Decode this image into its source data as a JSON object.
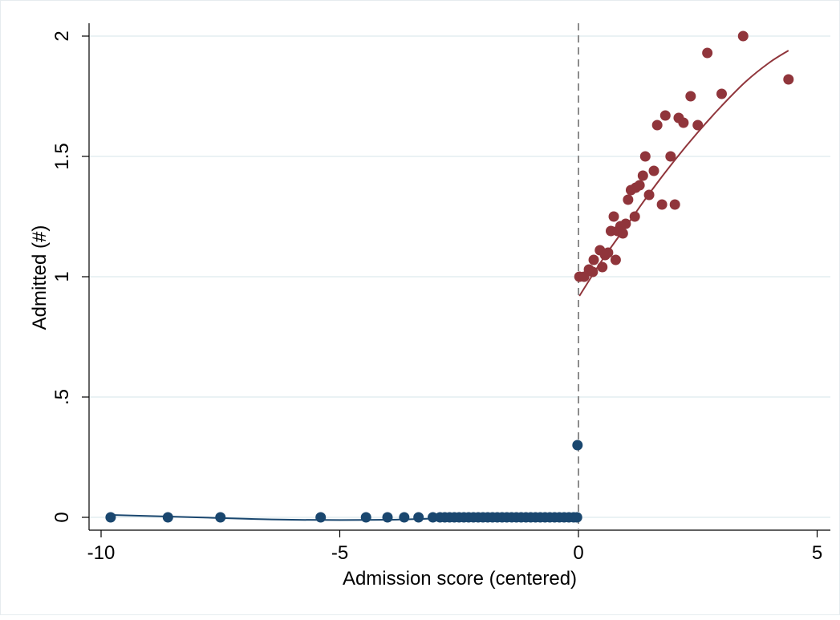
{
  "chart_data": {
    "type": "scatter",
    "xlabel": "Admission score (centered)",
    "ylabel": "Admitted (#)",
    "xlim": [
      -10.5,
      5.5
    ],
    "ylim": [
      -0.08,
      2.08
    ],
    "x_ticks": [
      -10,
      -5,
      0,
      5
    ],
    "x_tick_labels": [
      "-10",
      "-5",
      "0",
      "5"
    ],
    "y_ticks": [
      0,
      0.5,
      1,
      1.5,
      2
    ],
    "y_tick_labels": [
      "0",
      ".5",
      "1",
      "1.5",
      "2"
    ],
    "grid": true,
    "cutoff": 0,
    "colors": {
      "below": "#1a476f",
      "above": "#90353b",
      "cutoff_line": "#8c8c8c",
      "grid": "#e4eef0"
    },
    "series": [
      {
        "values": [
          [
            -9.8,
            0
          ],
          [
            -8.6,
            0
          ],
          [
            -7.5,
            0
          ],
          [
            -5.4,
            0
          ],
          [
            -4.45,
            0
          ],
          [
            -4.0,
            0
          ],
          [
            -3.65,
            0
          ],
          [
            -3.35,
            0
          ],
          [
            -3.05,
            0
          ],
          [
            -2.9,
            0
          ],
          [
            -2.8,
            0
          ],
          [
            -2.7,
            0
          ],
          [
            -2.6,
            0
          ],
          [
            -2.5,
            0
          ],
          [
            -2.4,
            0
          ],
          [
            -2.3,
            0
          ],
          [
            -2.2,
            0
          ],
          [
            -2.1,
            0
          ],
          [
            -2.0,
            0
          ],
          [
            -1.9,
            0
          ],
          [
            -1.8,
            0
          ],
          [
            -1.7,
            0
          ],
          [
            -1.6,
            0
          ],
          [
            -1.5,
            0
          ],
          [
            -1.4,
            0
          ],
          [
            -1.3,
            0
          ],
          [
            -1.2,
            0
          ],
          [
            -1.1,
            0
          ],
          [
            -1.0,
            0
          ],
          [
            -0.9,
            0
          ],
          [
            -0.8,
            0
          ],
          [
            -0.7,
            0
          ],
          [
            -0.6,
            0
          ],
          [
            -0.5,
            0
          ],
          [
            -0.4,
            0
          ],
          [
            -0.3,
            0
          ],
          [
            -0.2,
            0
          ],
          [
            -0.1,
            0
          ],
          [
            -0.03,
            0
          ],
          [
            -0.02,
            0.3
          ]
        ],
        "fit": [
          [
            -9.8,
            0.01
          ],
          [
            -8,
            0.0
          ],
          [
            -6,
            -0.01
          ],
          [
            -4,
            -0.01
          ],
          [
            -2,
            0.0
          ],
          [
            -0.02,
            0.0
          ]
        ]
      },
      {
        "values": [
          [
            0.02,
            1.0
          ],
          [
            0.12,
            1.0
          ],
          [
            0.22,
            1.03
          ],
          [
            0.3,
            1.02
          ],
          [
            0.32,
            1.07
          ],
          [
            0.45,
            1.11
          ],
          [
            0.5,
            1.04
          ],
          [
            0.56,
            1.09
          ],
          [
            0.62,
            1.1
          ],
          [
            0.68,
            1.19
          ],
          [
            0.74,
            1.25
          ],
          [
            0.78,
            1.07
          ],
          [
            0.82,
            1.19
          ],
          [
            0.88,
            1.21
          ],
          [
            0.93,
            1.18
          ],
          [
            0.99,
            1.22
          ],
          [
            1.04,
            1.32
          ],
          [
            1.1,
            1.36
          ],
          [
            1.18,
            1.25
          ],
          [
            1.2,
            1.37
          ],
          [
            1.28,
            1.38
          ],
          [
            1.35,
            1.42
          ],
          [
            1.4,
            1.5
          ],
          [
            1.48,
            1.34
          ],
          [
            1.58,
            1.44
          ],
          [
            1.65,
            1.63
          ],
          [
            1.75,
            1.3
          ],
          [
            1.82,
            1.67
          ],
          [
            1.93,
            1.5
          ],
          [
            2.02,
            1.3
          ],
          [
            2.1,
            1.66
          ],
          [
            2.2,
            1.64
          ],
          [
            2.35,
            1.75
          ],
          [
            2.5,
            1.63
          ],
          [
            2.7,
            1.93
          ],
          [
            3.0,
            1.76
          ],
          [
            3.45,
            2.0
          ],
          [
            4.4,
            1.82
          ]
        ],
        "fit": [
          [
            0.02,
            0.92
          ],
          [
            0.5,
            1.07
          ],
          [
            1.0,
            1.21
          ],
          [
            1.5,
            1.35
          ],
          [
            2.0,
            1.48
          ],
          [
            2.5,
            1.6
          ],
          [
            3.0,
            1.71
          ],
          [
            3.5,
            1.81
          ],
          [
            4.0,
            1.89
          ],
          [
            4.4,
            1.94
          ]
        ]
      }
    ]
  }
}
